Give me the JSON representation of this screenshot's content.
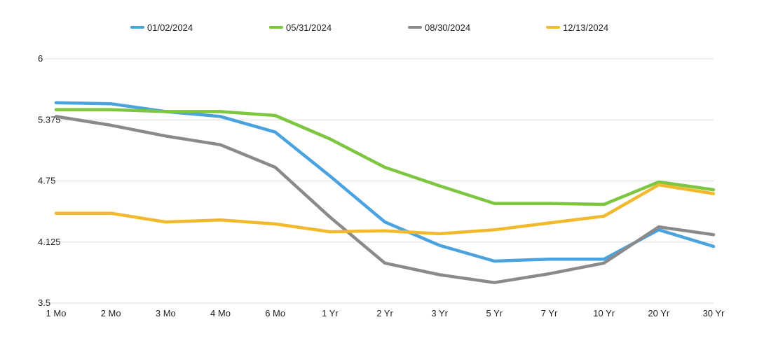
{
  "chart_data": {
    "type": "line",
    "title": "",
    "xlabel": "",
    "ylabel": "",
    "categories": [
      "1 Mo",
      "2 Mo",
      "3 Mo",
      "4 Mo",
      "6 Mo",
      "1 Yr",
      "2 Yr",
      "3 Yr",
      "5 Yr",
      "7 Yr",
      "10 Yr",
      "20 Yr",
      "30 Yr"
    ],
    "ylim": [
      3.5,
      6
    ],
    "yticks": [
      "3.5",
      "4.125",
      "4.75",
      "5.375",
      "6"
    ],
    "grid": true,
    "legend_position": "top",
    "series": [
      {
        "name": "01/02/2024",
        "color": "#4aa3df",
        "values": [
          5.55,
          5.54,
          5.46,
          5.41,
          5.25,
          4.8,
          4.33,
          4.09,
          3.93,
          3.95,
          3.95,
          4.25,
          4.08
        ]
      },
      {
        "name": "05/31/2024",
        "color": "#7dc63f",
        "values": [
          5.48,
          5.48,
          5.46,
          5.46,
          5.42,
          5.18,
          4.89,
          4.7,
          4.52,
          4.52,
          4.51,
          4.74,
          4.66
        ]
      },
      {
        "name": "08/30/2024",
        "color": "#8a8a8a",
        "values": [
          5.41,
          5.32,
          5.21,
          5.12,
          4.89,
          4.38,
          3.91,
          3.79,
          3.71,
          3.8,
          3.91,
          4.28,
          4.2
        ]
      },
      {
        "name": "12/13/2024",
        "color": "#f1b92e",
        "values": [
          4.42,
          4.42,
          4.33,
          4.35,
          4.31,
          4.23,
          4.24,
          4.21,
          4.25,
          4.32,
          4.39,
          4.71,
          4.62
        ]
      }
    ]
  }
}
